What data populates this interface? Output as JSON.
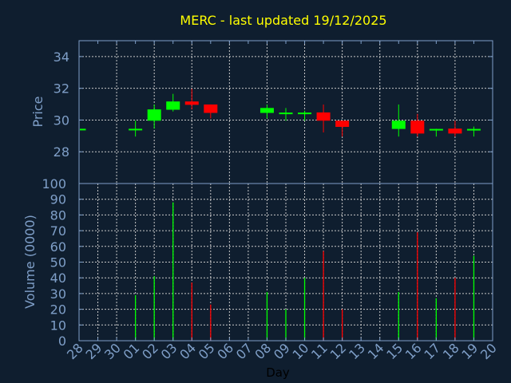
{
  "colors": {
    "background": "#0f1e2f",
    "axis": "#7f9fc8",
    "grid": "#c8c8c8",
    "up": "#00ff00",
    "down": "#ff0000",
    "title": "#ffff00"
  },
  "chart_data": [
    {
      "type": "candlestick",
      "title": "MERC - last updated 19/12/2025",
      "xlabel": "",
      "ylabel": "Price",
      "ylim": [
        26,
        35
      ],
      "yticks": [
        28,
        30,
        32,
        34
      ],
      "grid": true,
      "days": [
        "28",
        "29",
        "30",
        "01",
        "02",
        "03",
        "04",
        "05",
        "06",
        "07",
        "08",
        "09",
        "10",
        "11",
        "12",
        "13",
        "14",
        "15",
        "16",
        "17",
        "18",
        "19",
        "20"
      ],
      "candles": [
        {
          "day": "28",
          "open": 29.45,
          "high": 29.45,
          "low": 29.45,
          "close": 29.45
        },
        {
          "day": "01",
          "open": 29.45,
          "high": 29.96,
          "low": 28.96,
          "close": 29.45
        },
        {
          "day": "02",
          "open": 29.96,
          "high": 30.98,
          "low": 29.46,
          "close": 30.67
        },
        {
          "day": "03",
          "open": 30.65,
          "high": 31.65,
          "low": 30.54,
          "close": 31.17
        },
        {
          "day": "04",
          "open": 31.17,
          "high": 31.97,
          "low": 30.67,
          "close": 30.96
        },
        {
          "day": "05",
          "open": 30.98,
          "high": 30.98,
          "low": 30.1,
          "close": 30.45
        },
        {
          "day": "08",
          "open": 30.45,
          "high": 30.98,
          "low": 30.1,
          "close": 30.76
        },
        {
          "day": "09",
          "open": 30.47,
          "high": 30.76,
          "low": 29.96,
          "close": 30.47
        },
        {
          "day": "10",
          "open": 30.47,
          "high": 30.59,
          "low": 29.96,
          "close": 30.47
        },
        {
          "day": "11",
          "open": 30.48,
          "high": 30.98,
          "low": 29.22,
          "close": 29.96
        },
        {
          "day": "12",
          "open": 29.96,
          "high": 29.96,
          "low": 28.96,
          "close": 29.57
        },
        {
          "day": "15",
          "open": 29.44,
          "high": 30.98,
          "low": 28.96,
          "close": 29.96
        },
        {
          "day": "16",
          "open": 29.96,
          "high": 30.39,
          "low": 28.96,
          "close": 29.15
        },
        {
          "day": "17",
          "open": 29.44,
          "high": 29.45,
          "low": 28.96,
          "close": 29.44
        },
        {
          "day": "18",
          "open": 29.46,
          "high": 29.96,
          "low": 28.96,
          "close": 29.15
        },
        {
          "day": "19",
          "open": 29.44,
          "high": 29.59,
          "low": 28.96,
          "close": 29.44
        }
      ]
    },
    {
      "type": "bar",
      "xlabel": "Day",
      "ylabel": "Volume (0000)",
      "ylim": [
        0,
        100
      ],
      "yticks": [
        0,
        10,
        20,
        30,
        40,
        50,
        60,
        70,
        80,
        90,
        100
      ],
      "grid": true,
      "categories": [
        "01",
        "02",
        "03",
        "04",
        "05",
        "08",
        "09",
        "10",
        "11",
        "12",
        "15",
        "16",
        "17",
        "18",
        "19"
      ],
      "values": [
        29,
        41,
        88,
        37,
        23,
        31,
        20,
        40,
        57,
        20,
        31,
        69,
        27,
        40,
        54
      ],
      "direction": [
        "up",
        "up",
        "up",
        "down",
        "down",
        "up",
        "up",
        "up",
        "down",
        "down",
        "up",
        "down",
        "up",
        "down",
        "up"
      ]
    }
  ]
}
